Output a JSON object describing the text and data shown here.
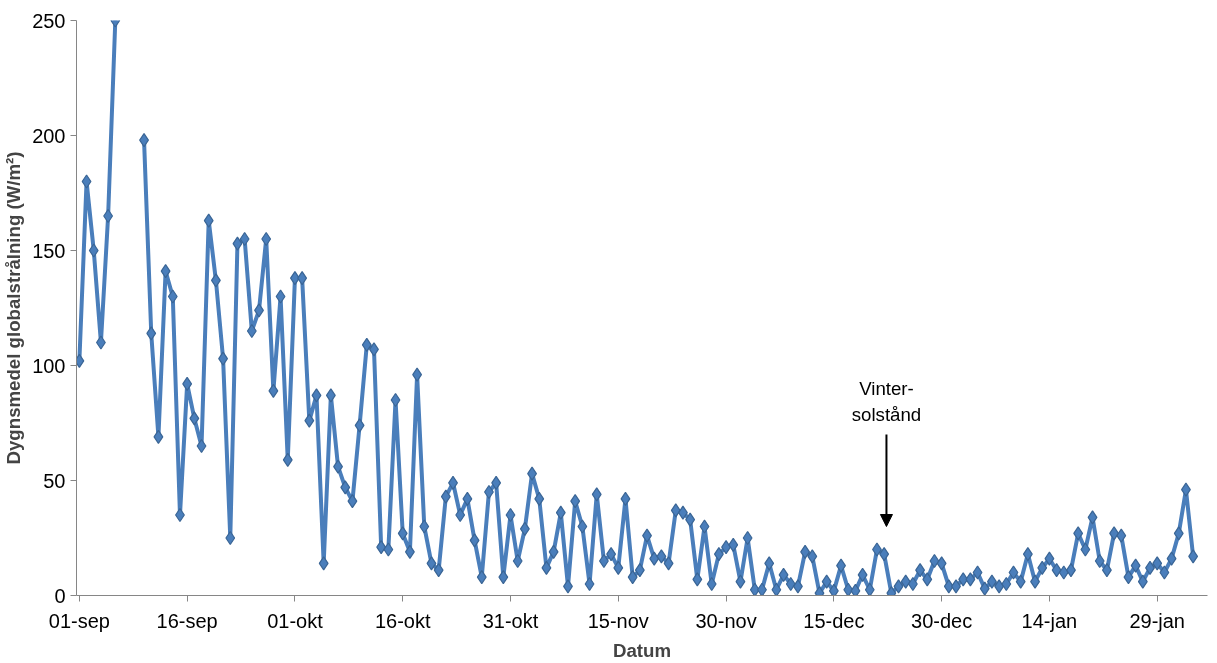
{
  "chart_data": {
    "type": "line",
    "xlabel": "Datum",
    "ylabel": "Dygnsmedel globalstrålning (W/m²)",
    "categories": [
      "01-sep",
      null,
      null,
      null,
      null,
      null,
      null,
      null,
      null,
      null,
      null,
      null,
      null,
      null,
      null,
      "16-sep",
      null,
      null,
      null,
      null,
      null,
      null,
      null,
      null,
      null,
      null,
      null,
      null,
      null,
      null,
      "01-okt",
      null,
      null,
      null,
      null,
      null,
      null,
      null,
      null,
      null,
      null,
      null,
      null,
      null,
      null,
      "16-okt",
      null,
      null,
      null,
      null,
      null,
      null,
      null,
      null,
      null,
      null,
      null,
      null,
      null,
      null,
      "31-okt",
      null,
      null,
      null,
      null,
      null,
      null,
      null,
      null,
      null,
      null,
      null,
      null,
      null,
      null,
      "15-nov",
      null,
      null,
      null,
      null,
      null,
      null,
      null,
      null,
      null,
      null,
      null,
      null,
      null,
      null,
      "30-nov",
      null,
      null,
      null,
      null,
      null,
      null,
      null,
      null,
      null,
      null,
      null,
      null,
      null,
      null,
      "15-dec",
      null,
      null,
      null,
      null,
      null,
      null,
      null,
      null,
      null,
      null,
      null,
      null,
      null,
      null,
      "30-dec",
      null,
      null,
      null,
      null,
      null,
      null,
      null,
      null,
      null,
      null,
      null,
      null,
      null,
      null,
      "14-jan",
      null,
      null,
      null,
      null,
      null,
      null,
      null,
      null,
      null,
      null,
      null,
      null,
      null,
      null,
      "29-jan",
      null,
      null,
      null,
      null,
      null
    ],
    "series": [
      {
        "color": "#4a7ebb",
        "values": [
          102,
          180,
          150,
          110,
          165,
          250,
          null,
          null,
          null,
          198,
          114,
          69,
          141,
          130,
          35,
          92,
          77,
          65,
          163,
          137,
          103,
          25,
          153,
          155,
          115,
          124,
          155,
          89,
          130,
          59,
          138,
          138,
          76,
          87,
          14,
          87,
          56,
          47,
          41,
          74,
          109,
          107,
          21,
          20,
          85,
          27,
          19,
          96,
          30,
          14,
          11,
          43,
          49,
          35,
          42,
          24,
          8,
          45,
          49,
          8,
          35,
          15,
          29,
          53,
          42,
          12,
          19,
          36,
          4,
          41,
          30,
          5,
          44,
          15,
          18,
          12,
          42,
          8,
          11,
          26,
          16,
          17,
          14,
          37,
          36,
          33,
          7,
          30,
          5,
          18,
          21,
          22,
          6,
          25,
          2.5,
          2.5,
          14,
          2.5,
          9,
          5,
          4,
          19,
          17,
          1,
          6,
          2,
          13,
          2.5,
          2,
          9,
          2.5,
          20,
          18,
          1,
          4,
          6,
          5,
          11,
          7,
          15,
          14,
          4,
          4,
          7,
          7,
          10,
          3,
          6,
          4,
          5,
          10,
          6,
          18,
          6,
          12,
          16,
          11,
          10,
          11,
          27,
          20,
          34,
          15,
          11,
          27,
          26,
          8,
          13,
          6,
          12,
          14,
          10,
          16,
          27,
          46,
          17
        ]
      }
    ],
    "ylim": [
      0,
      250
    ],
    "yticks": [
      0,
      50,
      100,
      150,
      200,
      250
    ],
    "marker": "diamond",
    "line_style": "solid",
    "annotations": [
      "Vinter-\nsolstånd"
    ]
  }
}
